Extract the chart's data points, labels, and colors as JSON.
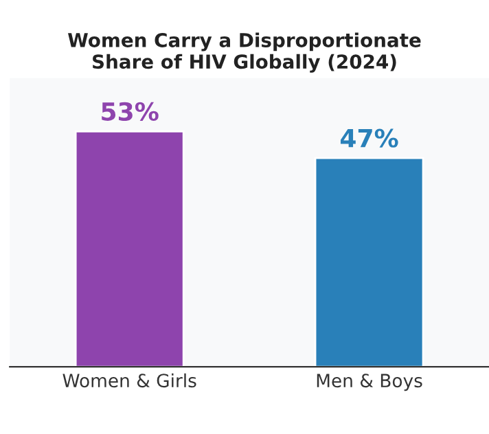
{
  "chart_data": {
    "type": "bar",
    "title": "Women Carry a Disproportionate\nShare of HIV Globally (2024)",
    "categories": [
      "Women & Girls",
      "Men & Boys"
    ],
    "values": [
      53,
      47
    ],
    "colors": [
      "#8e44ad",
      "#2980b9"
    ],
    "value_labels": [
      "53%",
      "47%"
    ],
    "ylim": [
      0,
      65
    ],
    "tick_labels": "x",
    "grid": false,
    "legend": false
  }
}
